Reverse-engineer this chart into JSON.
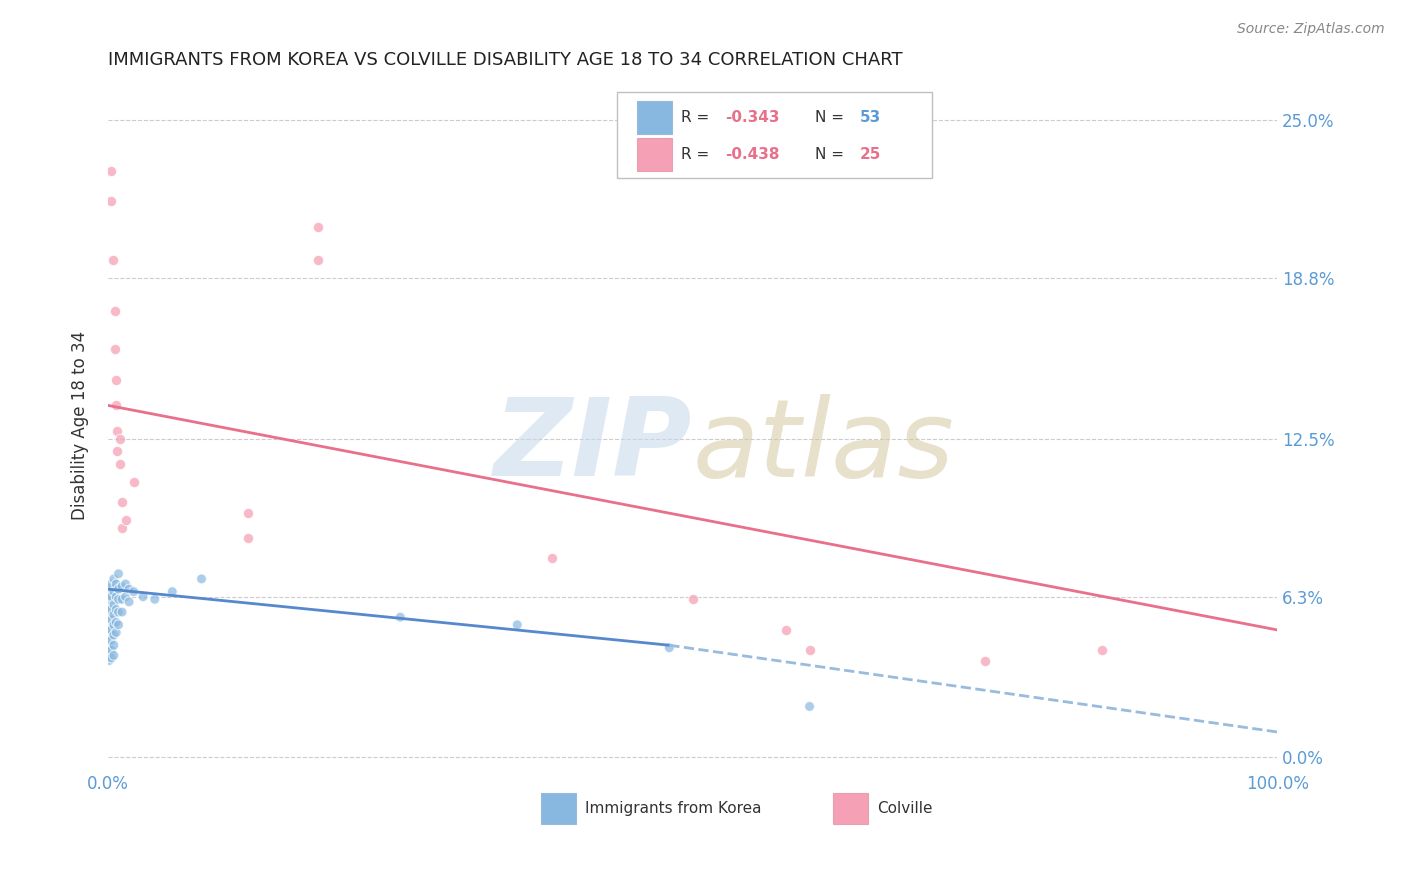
{
  "title": "IMMIGRANTS FROM KOREA VS COLVILLE DISABILITY AGE 18 TO 34 CORRELATION CHART",
  "source": "Source: ZipAtlas.com",
  "ylabel": "Disability Age 18 to 34",
  "xlim": [
    0.0,
    1.0
  ],
  "ylim": [
    -0.005,
    0.265
  ],
  "yticks": [
    0.0,
    0.063,
    0.125,
    0.188,
    0.25
  ],
  "ytick_labels": [
    "0.0%",
    "6.3%",
    "12.5%",
    "18.8%",
    "25.0%"
  ],
  "xticks": [
    0.0,
    1.0
  ],
  "xtick_labels": [
    "0.0%",
    "100.0%"
  ],
  "korea_color": "#88b8e0",
  "colville_color": "#f5a0b5",
  "korea_line_color": "#5588cc",
  "colville_line_color": "#e8708a",
  "trendline_dash_color": "#99bbdd",
  "background_color": "#ffffff",
  "grid_color": "#cccccc",
  "korea_scatter": [
    [
      0.001,
      0.063
    ],
    [
      0.001,
      0.058
    ],
    [
      0.001,
      0.055
    ],
    [
      0.001,
      0.052
    ],
    [
      0.001,
      0.05
    ],
    [
      0.001,
      0.048
    ],
    [
      0.001,
      0.046
    ],
    [
      0.001,
      0.044
    ],
    [
      0.001,
      0.042
    ],
    [
      0.001,
      0.04
    ],
    [
      0.001,
      0.038
    ],
    [
      0.003,
      0.068
    ],
    [
      0.003,
      0.063
    ],
    [
      0.003,
      0.058
    ],
    [
      0.003,
      0.054
    ],
    [
      0.003,
      0.05
    ],
    [
      0.003,
      0.046
    ],
    [
      0.003,
      0.042
    ],
    [
      0.003,
      0.039
    ],
    [
      0.005,
      0.07
    ],
    [
      0.005,
      0.065
    ],
    [
      0.005,
      0.06
    ],
    [
      0.005,
      0.056
    ],
    [
      0.005,
      0.052
    ],
    [
      0.005,
      0.048
    ],
    [
      0.005,
      0.044
    ],
    [
      0.005,
      0.04
    ],
    [
      0.007,
      0.068
    ],
    [
      0.007,
      0.063
    ],
    [
      0.007,
      0.058
    ],
    [
      0.007,
      0.053
    ],
    [
      0.007,
      0.049
    ],
    [
      0.009,
      0.072
    ],
    [
      0.009,
      0.066
    ],
    [
      0.009,
      0.062
    ],
    [
      0.009,
      0.057
    ],
    [
      0.009,
      0.052
    ],
    [
      0.012,
      0.067
    ],
    [
      0.012,
      0.062
    ],
    [
      0.012,
      0.057
    ],
    [
      0.015,
      0.068
    ],
    [
      0.015,
      0.063
    ],
    [
      0.018,
      0.066
    ],
    [
      0.018,
      0.061
    ],
    [
      0.022,
      0.065
    ],
    [
      0.03,
      0.063
    ],
    [
      0.04,
      0.062
    ],
    [
      0.055,
      0.065
    ],
    [
      0.08,
      0.07
    ],
    [
      0.25,
      0.055
    ],
    [
      0.35,
      0.052
    ],
    [
      0.48,
      0.043
    ],
    [
      0.6,
      0.02
    ]
  ],
  "korea_sizes": [
    350,
    50,
    50,
    50,
    50,
    50,
    50,
    50,
    50,
    50,
    50,
    50,
    50,
    50,
    50,
    50,
    50,
    50,
    50,
    50,
    50,
    50,
    50,
    50,
    50,
    50,
    50,
    50,
    50,
    50,
    50,
    50,
    50,
    50,
    50,
    50,
    50,
    50,
    50,
    50,
    50,
    50,
    50,
    50,
    50,
    50,
    50,
    50,
    50,
    50,
    50,
    50,
    50
  ],
  "colville_scatter": [
    [
      0.003,
      0.23
    ],
    [
      0.003,
      0.218
    ],
    [
      0.004,
      0.195
    ],
    [
      0.006,
      0.175
    ],
    [
      0.006,
      0.16
    ],
    [
      0.007,
      0.148
    ],
    [
      0.007,
      0.138
    ],
    [
      0.008,
      0.128
    ],
    [
      0.008,
      0.12
    ],
    [
      0.01,
      0.125
    ],
    [
      0.01,
      0.115
    ],
    [
      0.012,
      0.1
    ],
    [
      0.012,
      0.09
    ],
    [
      0.015,
      0.093
    ],
    [
      0.022,
      0.108
    ],
    [
      0.12,
      0.096
    ],
    [
      0.12,
      0.086
    ],
    [
      0.18,
      0.208
    ],
    [
      0.18,
      0.195
    ],
    [
      0.38,
      0.078
    ],
    [
      0.5,
      0.062
    ],
    [
      0.58,
      0.05
    ],
    [
      0.6,
      0.042
    ],
    [
      0.75,
      0.038
    ],
    [
      0.85,
      0.042
    ]
  ],
  "korea_trendline_solid": [
    [
      0.0,
      0.066
    ],
    [
      0.48,
      0.044
    ]
  ],
  "korea_trendline_dash": [
    [
      0.48,
      0.044
    ],
    [
      1.0,
      0.01
    ]
  ],
  "colville_trendline": [
    [
      0.0,
      0.138
    ],
    [
      1.0,
      0.05
    ]
  ]
}
